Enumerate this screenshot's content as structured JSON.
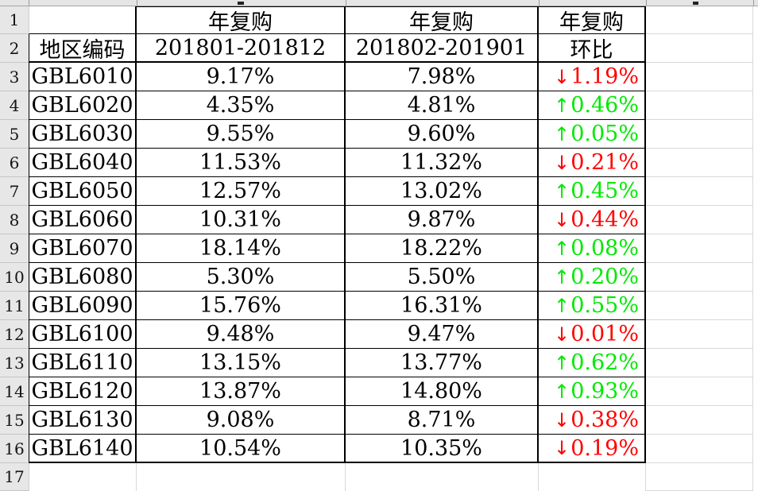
{
  "sheet": {
    "row_numbers": [
      "1",
      "2",
      "3",
      "4",
      "5",
      "6",
      "7",
      "8",
      "9",
      "10",
      "11",
      "12",
      "13",
      "14",
      "15",
      "16",
      "17"
    ]
  },
  "table": {
    "top_header": {
      "b": "年复购",
      "c": "年复购",
      "d": "年复购"
    },
    "second_header": {
      "a": "地区编码",
      "b": "201801-201812",
      "c": "201802-201901",
      "d": "环比"
    },
    "icons": {
      "up": "↑",
      "down": "↓"
    },
    "colors": {
      "up": "#00e800",
      "down": "#ff0000"
    },
    "rows": [
      {
        "code": "GBL6010",
        "p2018": "9.17%",
        "p2019": "7.98%",
        "trend": "down",
        "delta": "1.19%"
      },
      {
        "code": "GBL6020",
        "p2018": "4.35%",
        "p2019": "4.81%",
        "trend": "up",
        "delta": "0.46%"
      },
      {
        "code": "GBL6030",
        "p2018": "9.55%",
        "p2019": "9.60%",
        "trend": "up",
        "delta": "0.05%"
      },
      {
        "code": "GBL6040",
        "p2018": "11.53%",
        "p2019": "11.32%",
        "trend": "down",
        "delta": "0.21%"
      },
      {
        "code": "GBL6050",
        "p2018": "12.57%",
        "p2019": "13.02%",
        "trend": "up",
        "delta": "0.45%"
      },
      {
        "code": "GBL6060",
        "p2018": "10.31%",
        "p2019": "9.87%",
        "trend": "down",
        "delta": "0.44%"
      },
      {
        "code": "GBL6070",
        "p2018": "18.14%",
        "p2019": "18.22%",
        "trend": "up",
        "delta": "0.08%"
      },
      {
        "code": "GBL6080",
        "p2018": "5.30%",
        "p2019": "5.50%",
        "trend": "up",
        "delta": "0.20%"
      },
      {
        "code": "GBL6090",
        "p2018": "15.76%",
        "p2019": "16.31%",
        "trend": "up",
        "delta": "0.55%"
      },
      {
        "code": "GBL6100",
        "p2018": "9.48%",
        "p2019": "9.47%",
        "trend": "down",
        "delta": "0.01%"
      },
      {
        "code": "GBL6110",
        "p2018": "13.15%",
        "p2019": "13.77%",
        "trend": "up",
        "delta": "0.62%"
      },
      {
        "code": "GBL6120",
        "p2018": "13.87%",
        "p2019": "14.80%",
        "trend": "up",
        "delta": "0.93%"
      },
      {
        "code": "GBL6130",
        "p2018": "9.08%",
        "p2019": "8.71%",
        "trend": "down",
        "delta": "0.38%"
      },
      {
        "code": "GBL6140",
        "p2018": "10.54%",
        "p2019": "10.35%",
        "trend": "down",
        "delta": "0.19%"
      }
    ]
  }
}
